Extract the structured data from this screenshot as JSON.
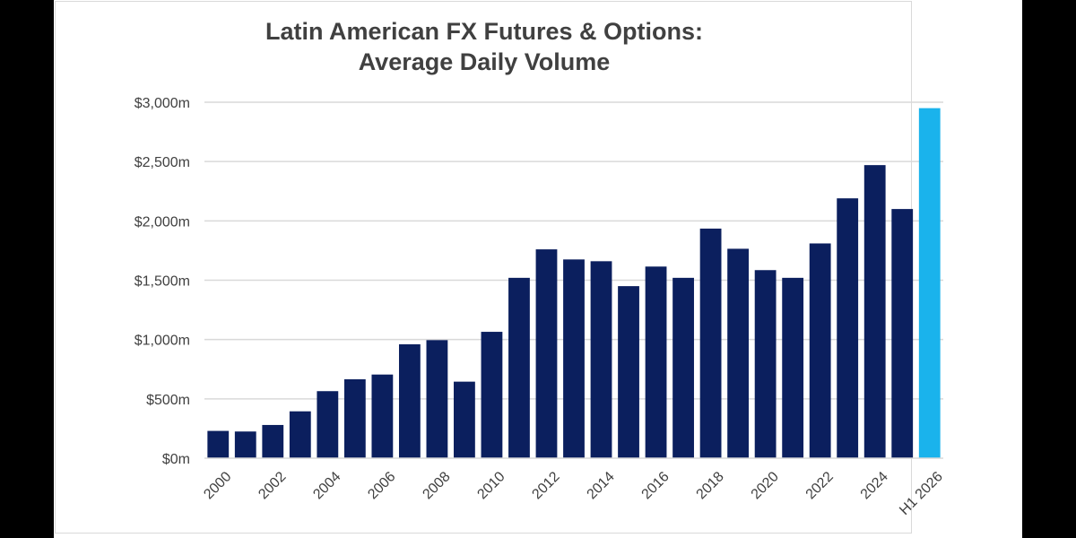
{
  "colors": {
    "bar": "#0b1f5e",
    "highlight": "#1ab3ec",
    "grid": "#d9d9d9",
    "text": "#404040"
  },
  "chart_data": {
    "type": "bar",
    "title_line1": "Latin American FX Futures & Options:",
    "title_line2": "Average Daily Volume",
    "xlabel": "",
    "ylabel": "",
    "ylim": [
      0,
      3000
    ],
    "yticks": [
      {
        "value": 0,
        "label": "$0m"
      },
      {
        "value": 500,
        "label": "$500m"
      },
      {
        "value": 1000,
        "label": "$1,000m"
      },
      {
        "value": 1500,
        "label": "$1,500m"
      },
      {
        "value": 2000,
        "label": "$2,000m"
      },
      {
        "value": 2500,
        "label": "$2,500m"
      },
      {
        "value": 3000,
        "label": "$3,000m"
      }
    ],
    "grid": true,
    "legend": "none",
    "categories": [
      "2000",
      "2001",
      "2002",
      "2003",
      "2004",
      "2005",
      "2006",
      "2007",
      "2008",
      "2009",
      "2010",
      "2011",
      "2012",
      "2013",
      "2014",
      "2015",
      "2016",
      "2017",
      "2018",
      "2019",
      "2020",
      "2021",
      "2022",
      "2023",
      "2024",
      "2025",
      "H1 2026"
    ],
    "tick_labels": [
      "2000",
      "",
      "2002",
      "",
      "2004",
      "",
      "2006",
      "",
      "2008",
      "",
      "2010",
      "",
      "2012",
      "",
      "2014",
      "",
      "2016",
      "",
      "2018",
      "",
      "2020",
      "",
      "2022",
      "",
      "2024",
      "",
      "H1 2026"
    ],
    "values": [
      230,
      225,
      280,
      395,
      565,
      665,
      705,
      960,
      995,
      645,
      1065,
      1520,
      1760,
      1675,
      1660,
      1450,
      1615,
      1520,
      1935,
      1765,
      1585,
      1520,
      1810,
      2190,
      2470,
      2100,
      2950
    ],
    "highlight_index": 26
  }
}
